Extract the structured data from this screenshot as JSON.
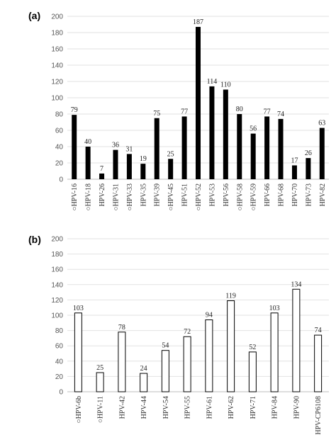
{
  "chart_data": [
    {
      "panel_label": "(a)",
      "type": "bar",
      "bar_style": "filled",
      "bar_color": "#000000",
      "categories": [
        "○HPV-16",
        "○HPV-18",
        "HPV-26",
        "○HPV-31",
        "○HPV-33",
        "HPV-35",
        "HPV-39",
        "○HPV-45",
        "HPV-51",
        "○HPV-52",
        "HPV-53",
        "HPV-56",
        "○HPV-58",
        "○HPV-59",
        "HPV-66",
        "HPV-68",
        "HPV-70",
        "HPV-73",
        "HPV-82"
      ],
      "values": [
        79,
        40,
        7,
        36,
        31,
        19,
        75,
        25,
        77,
        187,
        114,
        110,
        80,
        56,
        77,
        74,
        17,
        26,
        63
      ],
      "ylim": [
        0,
        200
      ],
      "yticks": [
        0,
        20,
        40,
        60,
        80,
        100,
        120,
        140,
        160,
        180,
        200
      ],
      "grid": true
    },
    {
      "panel_label": "(b)",
      "type": "bar",
      "bar_style": "outline",
      "bar_color": "#000000",
      "categories": [
        "○HPV-6b",
        "○HPV-11",
        "HPV-42",
        "HPV-44",
        "HPV-54",
        "HPV-55",
        "HPV-61",
        "HPV-62",
        "HPV-71",
        "HPV-84",
        "HPV-90",
        "HPV-CP6108"
      ],
      "values": [
        103,
        25,
        78,
        24,
        54,
        72,
        94,
        119,
        52,
        103,
        134,
        74
      ],
      "ylim": [
        0,
        200
      ],
      "yticks": [
        0,
        20,
        40,
        60,
        80,
        100,
        120,
        140,
        160,
        180,
        200
      ],
      "grid": true
    }
  ]
}
